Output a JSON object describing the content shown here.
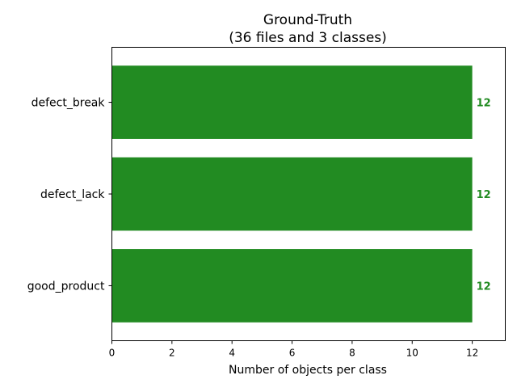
{
  "chart_data": {
    "type": "bar",
    "orientation": "horizontal",
    "title": "Ground-Truth",
    "subtitle": "(36 files and 3 classes)",
    "xlabel": "Number of objects per class",
    "ylabel": "",
    "categories": [
      "defect_break",
      "defect_lack",
      "good_product"
    ],
    "values": [
      12,
      12,
      12
    ],
    "data_labels": [
      "12",
      "12",
      "12"
    ],
    "xlim": [
      0,
      13.1
    ],
    "xticks": [
      0,
      2,
      4,
      6,
      8,
      10,
      12
    ],
    "xtick_labels": [
      "0",
      "2",
      "4",
      "6",
      "8",
      "10",
      "12"
    ],
    "grid": false,
    "colors": {
      "bar": "#228b22",
      "label": "#228b22"
    }
  }
}
